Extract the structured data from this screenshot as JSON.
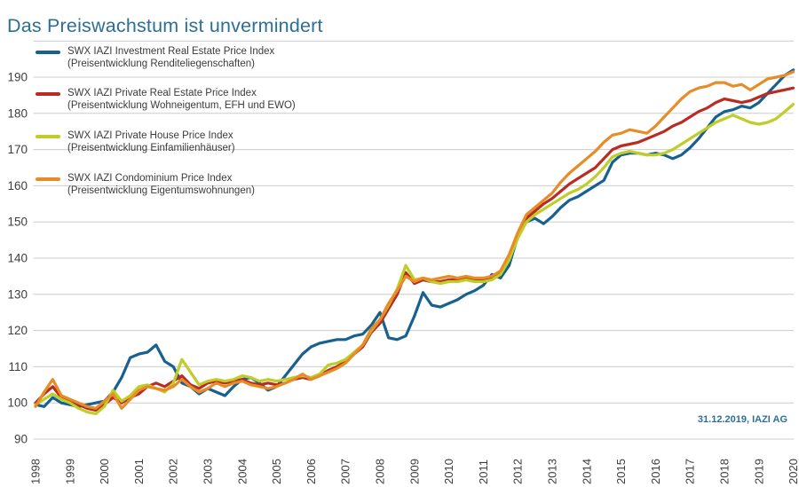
{
  "title": "Das Preiswachstum ist unvermindert",
  "source_note": "31.12.2019, IAZI AG",
  "colors": {
    "title": "#2d6e96",
    "source_note": "#2d6e96",
    "grid": "#cccccc",
    "axis_text": "#3d3d3d",
    "investment": "#176090",
    "private_real_estate": "#b92c23",
    "private_house": "#bfce27",
    "condominium": "#e78c26"
  },
  "legend": {
    "items": [
      {
        "key": "investment",
        "label": "SWX IAZI Investment Real Estate Price Index",
        "sublabel": "(Preisentwicklung Renditeliegenschaften)"
      },
      {
        "key": "private_real_estate",
        "label": "SWX IAZI Private Real Estate Price Index",
        "sublabel": "(Preisentwicklung Wohneigentum, EFH und EWO)"
      },
      {
        "key": "private_house",
        "label": "SWX IAZI Private House Price Index",
        "sublabel": "(Preisentwicklung Einfamilienhäuser)"
      },
      {
        "key": "condominium",
        "label": "SWX IAZI Condominium Price Index",
        "sublabel": "(Preisentwicklung Eigentumswohnungen)"
      }
    ]
  },
  "chart_data": {
    "type": "line",
    "title": "Das Preiswachstum ist unvermindert",
    "x_start": 1998,
    "x_step": 0.25,
    "x_tick_labels": [
      "1998",
      "1999",
      "2000",
      "2001",
      "2002",
      "2003",
      "2004",
      "2005",
      "2006",
      "2007",
      "2008",
      "2009",
      "2010",
      "2011",
      "2012",
      "2013",
      "2014",
      "2015",
      "2016",
      "2017",
      "2018",
      "2019",
      "2020"
    ],
    "y_ticks": [
      90,
      100,
      110,
      120,
      130,
      140,
      150,
      160,
      170,
      180,
      190
    ],
    "ylim": [
      90,
      200
    ],
    "grid": "horizontal",
    "legend_position": "top-left-inside",
    "series": [
      {
        "key": "investment",
        "name": "SWX IAZI Investment Real Estate Price Index (Preisentwicklung Renditeliegenschaften)",
        "values": [
          99.5,
          99,
          101.5,
          100,
          99.5,
          99,
          99.5,
          100,
          100.5,
          103,
          107,
          112.5,
          113.5,
          114,
          116,
          111.5,
          110,
          105.5,
          104.5,
          102.5,
          104,
          103,
          102,
          104.5,
          106.5,
          107,
          105.5,
          103.5,
          104.5,
          107.5,
          110.5,
          113.5,
          115.5,
          116.5,
          117,
          117.5,
          117.5,
          118.5,
          119,
          121.5,
          125,
          118,
          117.5,
          118.5,
          124,
          130.5,
          127,
          126.5,
          127.5,
          128.5,
          130,
          131,
          132.5,
          135.5,
          134.5,
          138,
          146,
          150,
          151,
          149.5,
          151.5,
          154,
          156,
          157,
          158.5,
          160,
          161.5,
          166.5,
          168.5,
          169,
          169,
          168.5,
          169,
          168.5,
          167.5,
          168.5,
          170.5,
          173,
          176,
          179,
          180.5,
          181,
          182,
          181.5,
          183,
          185.5,
          188,
          190.5,
          192
        ]
      },
      {
        "key": "private_real_estate",
        "name": "SWX IAZI Private Real Estate Price Index (Preisentwicklung Wohneigentum, EFH und EWO)",
        "values": [
          100,
          102.5,
          104.5,
          101.5,
          100.5,
          99.5,
          98.5,
          98,
          99.5,
          101.5,
          100,
          101.5,
          102.5,
          104.5,
          105.5,
          104.5,
          106,
          107.5,
          105,
          104,
          105.5,
          106,
          105.5,
          106,
          106.5,
          105.5,
          105,
          105.5,
          105,
          105.5,
          106.5,
          107,
          106.5,
          107.5,
          109,
          110,
          111.5,
          113.5,
          115.5,
          119.5,
          122,
          126,
          130,
          136,
          133,
          134,
          133.5,
          133.5,
          134,
          134,
          134.5,
          134,
          134,
          134.5,
          136,
          140,
          146,
          151,
          153,
          155,
          156.5,
          158.5,
          160.5,
          162,
          163.5,
          165,
          167.5,
          170,
          171,
          171.5,
          172,
          173,
          174,
          175,
          176.5,
          177.5,
          179,
          180.5,
          181.5,
          183,
          184,
          183.5,
          183,
          183.5,
          184.5,
          185.5,
          186,
          186.5,
          187
        ]
      },
      {
        "key": "private_house",
        "name": "SWX IAZI Private House Price Index (Preisentwicklung Einfamilienhäuser)",
        "values": [
          99.5,
          101,
          102.5,
          101,
          100,
          98.5,
          97.5,
          97,
          99,
          103.5,
          100.5,
          102,
          104.5,
          105,
          104,
          103,
          105.5,
          112,
          108.5,
          105,
          106,
          106.5,
          106,
          106.5,
          107.5,
          107,
          106,
          106.5,
          106,
          106.5,
          107,
          107.5,
          107,
          108,
          110.5,
          111,
          112,
          114,
          116,
          120,
          123,
          127,
          131.5,
          138,
          134,
          134.5,
          133.5,
          133,
          133.5,
          133.5,
          134,
          133.5,
          133.5,
          134,
          135.5,
          139.5,
          145.5,
          150,
          152,
          153.5,
          155,
          156.5,
          158,
          159,
          160.5,
          162.5,
          165,
          168,
          169,
          169.5,
          169,
          168.5,
          168.5,
          169,
          170,
          171.5,
          173,
          174.5,
          176,
          177.5,
          178.5,
          179.5,
          178.5,
          177.5,
          177,
          177.5,
          178.5,
          180.5,
          182.5
        ]
      },
      {
        "key": "condominium",
        "name": "SWX IAZI Condominium Price Index (Preisentwicklung Eigentumswohnungen)",
        "values": [
          99,
          103,
          106.5,
          102,
          101,
          100,
          99,
          98.5,
          100.5,
          102.5,
          98.5,
          101,
          103.5,
          104.5,
          104,
          103.5,
          104.5,
          106.5,
          104.5,
          103,
          104,
          105.5,
          104.5,
          105.5,
          106,
          105,
          104.5,
          104,
          104.5,
          105.5,
          106.5,
          108,
          106.5,
          107.5,
          108.5,
          109.5,
          111,
          113.5,
          116,
          120.5,
          123,
          127.5,
          131,
          135,
          133.5,
          134.5,
          134,
          134.5,
          135,
          134.5,
          135,
          134.5,
          134.5,
          135,
          136.5,
          141,
          147,
          152,
          154,
          156,
          158,
          161,
          163.5,
          165.5,
          167.5,
          169.5,
          172,
          174,
          174.5,
          175.5,
          175,
          174.5,
          176.5,
          179,
          181.5,
          184,
          186,
          187,
          187.5,
          188.5,
          188.5,
          187.5,
          188,
          186.5,
          188,
          189.5,
          190,
          190.5,
          191.5
        ]
      }
    ]
  }
}
